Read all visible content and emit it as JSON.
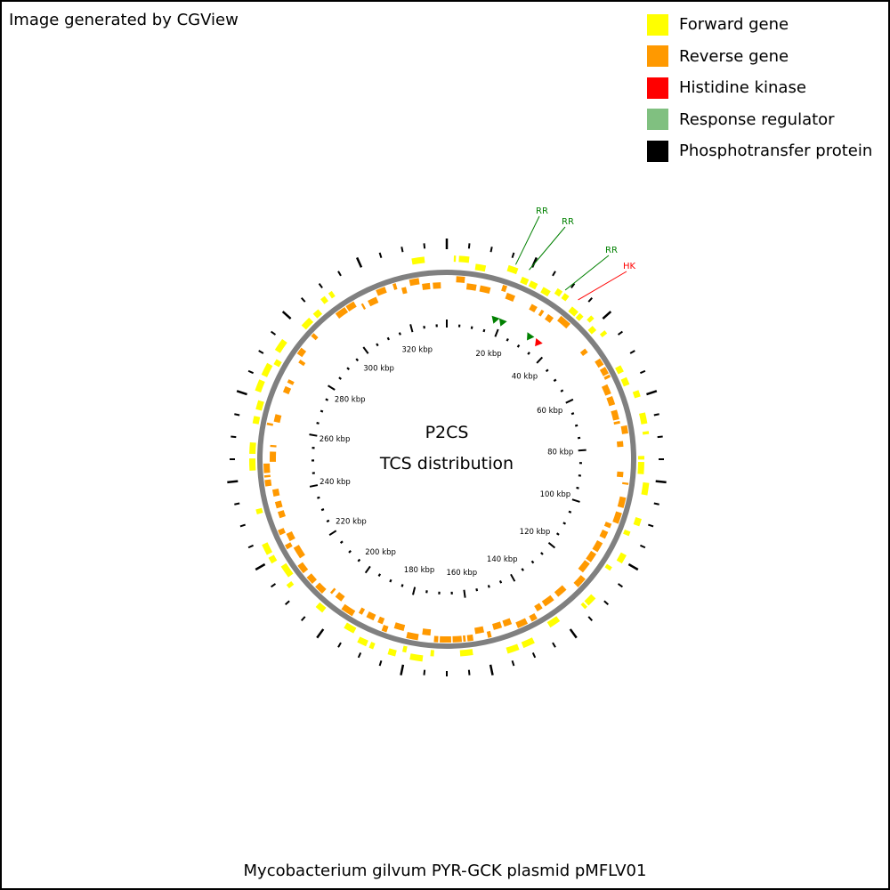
{
  "credit": "Image generated by CGView",
  "legend": [
    {
      "label": "Forward gene",
      "color": "#ffff00"
    },
    {
      "label": "Reverse gene",
      "color": "#ff9900"
    },
    {
      "label": "Histidine kinase",
      "color": "#ff0000"
    },
    {
      "label": "Response regulator",
      "color": "#80c080"
    },
    {
      "label": "Phosphotransfer protein",
      "color": "#000000"
    }
  ],
  "center_title": "P2CS",
  "center_subtitle": "TCS distribution",
  "footer": "Mycobacterium gilvum PYR-GCK plasmid pMFLV01",
  "map": {
    "tick_labels": [
      "20 kbp",
      "40 kbp",
      "60 kbp",
      "80 kbp",
      "100 kbp",
      "120 kbp",
      "140 kbp",
      "160 kbp",
      "180 kbp",
      "200 kbp",
      "220 kbp",
      "240 kbp",
      "260 kbp",
      "280 kbp",
      "300 kbp",
      "320 kbp"
    ],
    "feature_labels": [
      {
        "text": "RR",
        "type": "rr",
        "color": "#008000"
      },
      {
        "text": "RR",
        "type": "rr",
        "color": "#008000"
      },
      {
        "text": "RR",
        "type": "rr",
        "color": "#008000"
      },
      {
        "text": "HK",
        "type": "hk",
        "color": "#ff0000"
      }
    ]
  }
}
